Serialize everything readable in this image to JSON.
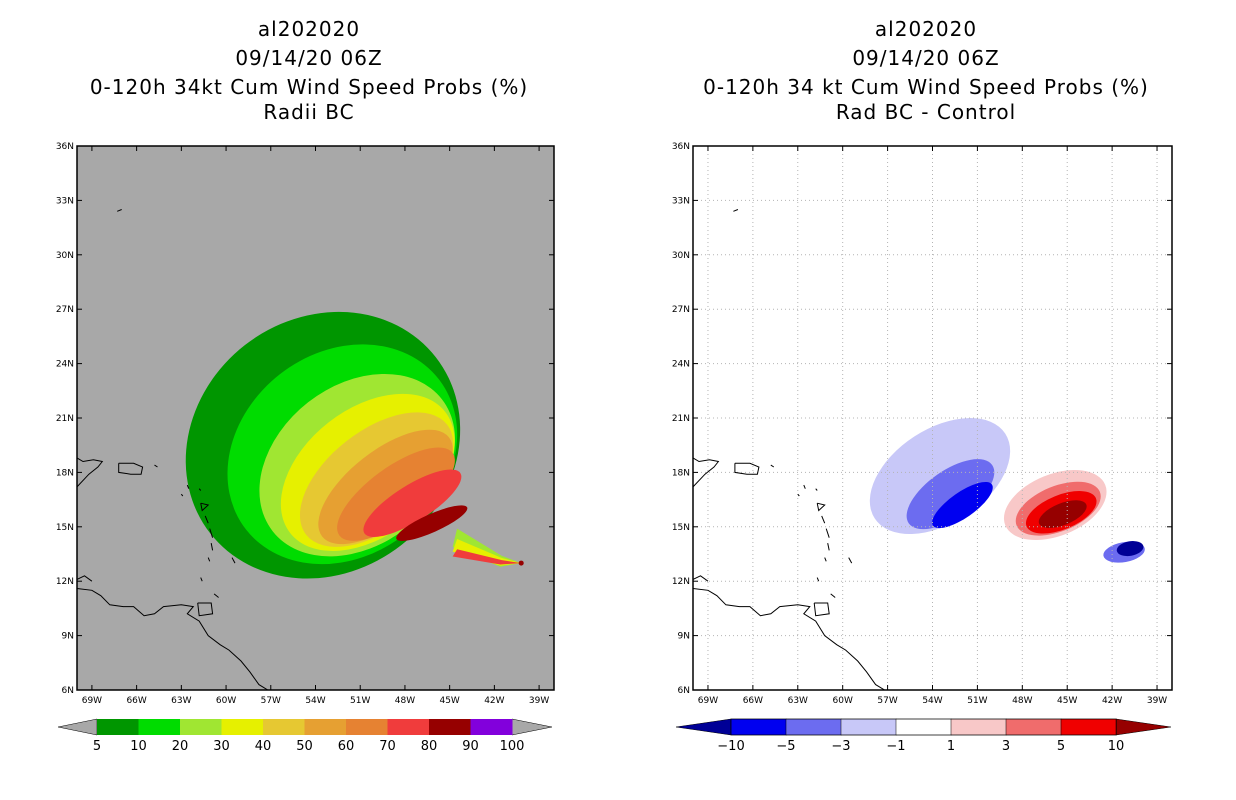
{
  "chart_data": [
    {
      "type": "heatmap",
      "title_lines": [
        "al202020",
        "09/14/20 06Z",
        "0-120h 34kt Cum Wind Speed Probs (%)",
        "Radii BC"
      ],
      "x_ticks": [
        "69W",
        "66W",
        "63W",
        "60W",
        "57W",
        "54W",
        "51W",
        "48W",
        "45W",
        "42W",
        "39W"
      ],
      "y_ticks": [
        "6N",
        "9N",
        "12N",
        "15N",
        "18N",
        "21N",
        "24N",
        "27N",
        "30N",
        "33N",
        "36N"
      ],
      "xlim": [
        -70,
        -38
      ],
      "ylim": [
        6,
        36
      ],
      "background": "#a8a8a8",
      "colorbar": {
        "labels": [
          "5",
          "10",
          "20",
          "30",
          "40",
          "50",
          "60",
          "70",
          "80",
          "90",
          "100"
        ],
        "colors": [
          "#009600",
          "#00dc00",
          "#a0e632",
          "#e6f000",
          "#e6c832",
          "#e6a032",
          "#e68232",
          "#f03c3c",
          "#960000",
          "#8200dc"
        ],
        "ends": "#a8a8a8"
      },
      "levels": [
        {
          "threshold": "5",
          "color": "#009600",
          "center": [
            -53.5,
            19.5
          ],
          "rx": 9.6,
          "ry": 7.0,
          "angle": -38
        },
        {
          "threshold": "10",
          "color": "#00dc00",
          "center": [
            -52.2,
            19.0
          ],
          "rx": 8.2,
          "ry": 5.6,
          "angle": -38
        },
        {
          "threshold": "20",
          "color": "#a0e632",
          "center": [
            -51.2,
            18.4
          ],
          "rx": 7.2,
          "ry": 4.4,
          "angle": -38
        },
        {
          "threshold": "30",
          "color": "#e6f000",
          "center": [
            -50.5,
            18.0
          ],
          "rx": 6.6,
          "ry": 3.5,
          "angle": -38
        },
        {
          "threshold": "40",
          "color": "#e6c832",
          "center": [
            -49.9,
            17.6
          ],
          "rx": 6.0,
          "ry": 2.7,
          "angle": -38
        },
        {
          "threshold": "50",
          "color": "#e6a032",
          "center": [
            -49.3,
            17.2
          ],
          "rx": 5.4,
          "ry": 2.0,
          "angle": -38
        },
        {
          "threshold": "60",
          "color": "#e68232",
          "center": [
            -48.6,
            16.8
          ],
          "rx": 4.7,
          "ry": 1.5,
          "angle": -36
        },
        {
          "threshold": "70",
          "color": "#f03c3c",
          "center": [
            -47.5,
            16.3
          ],
          "rx": 3.8,
          "ry": 1.0,
          "angle": -32
        },
        {
          "threshold": "80",
          "color": "#960000",
          "center": [
            -46.2,
            15.2
          ],
          "rx": 2.6,
          "ry": 0.5,
          "angle": -24
        }
      ],
      "storm_point": [
        -40.2,
        13.0
      ]
    },
    {
      "type": "heatmap",
      "title_lines": [
        "al202020",
        "09/14/20 06Z",
        "0-120h 34 kt Cum Wind Speed Probs (%)",
        "Rad BC - Control"
      ],
      "x_ticks": [
        "69W",
        "66W",
        "63W",
        "60W",
        "57W",
        "54W",
        "51W",
        "48W",
        "45W",
        "42W",
        "39W"
      ],
      "y_ticks": [
        "6N",
        "9N",
        "12N",
        "15N",
        "18N",
        "21N",
        "24N",
        "27N",
        "30N",
        "33N",
        "36N"
      ],
      "xlim": [
        -70,
        -38
      ],
      "ylim": [
        6,
        36
      ],
      "background": "#ffffff",
      "colorbar": {
        "labels": [
          "-10",
          "-5",
          "-3",
          "-1",
          "1",
          "3",
          "5",
          "10"
        ],
        "colors": [
          "#0000f0",
          "#6c6cf0",
          "#c8c8f8",
          "#ffffff",
          "#f8c8c8",
          "#f06c6c",
          "#f00000"
        ],
        "ends_low": "#000096",
        "ends_high": "#960000"
      },
      "anomalies": [
        {
          "value": "-1",
          "color": "#c8c8f8",
          "center": [
            -53.5,
            17.8
          ],
          "rx": 5.2,
          "ry": 2.6,
          "angle": -33
        },
        {
          "value": "-3",
          "color": "#6c6cf0",
          "center": [
            -52.8,
            16.8
          ],
          "rx": 3.4,
          "ry": 1.3,
          "angle": -35
        },
        {
          "value": "-5",
          "color": "#0000f0",
          "center": [
            -52.0,
            16.2
          ],
          "rx": 2.4,
          "ry": 0.7,
          "angle": -35
        },
        {
          "value": "1",
          "color": "#f8c8c8",
          "center": [
            -45.8,
            16.2
          ],
          "rx": 3.6,
          "ry": 1.7,
          "angle": -22
        },
        {
          "value": "3",
          "color": "#f06c6c",
          "center": [
            -45.6,
            16.0
          ],
          "rx": 3.0,
          "ry": 1.25,
          "angle": -22
        },
        {
          "value": "5",
          "color": "#f00000",
          "center": [
            -45.4,
            15.8
          ],
          "rx": 2.5,
          "ry": 0.95,
          "angle": -22
        },
        {
          "value": "10",
          "color": "#960000",
          "center": [
            -45.3,
            15.7
          ],
          "rx": 1.7,
          "ry": 0.6,
          "angle": -22
        },
        {
          "value": "-5b",
          "color": "#6c6cf0",
          "center": [
            -41.2,
            13.6
          ],
          "rx": 1.4,
          "ry": 0.55,
          "angle": -10
        },
        {
          "value": "-10",
          "color": "#000096",
          "center": [
            -40.8,
            13.8
          ],
          "rx": 0.9,
          "ry": 0.4,
          "angle": -10
        }
      ]
    }
  ]
}
